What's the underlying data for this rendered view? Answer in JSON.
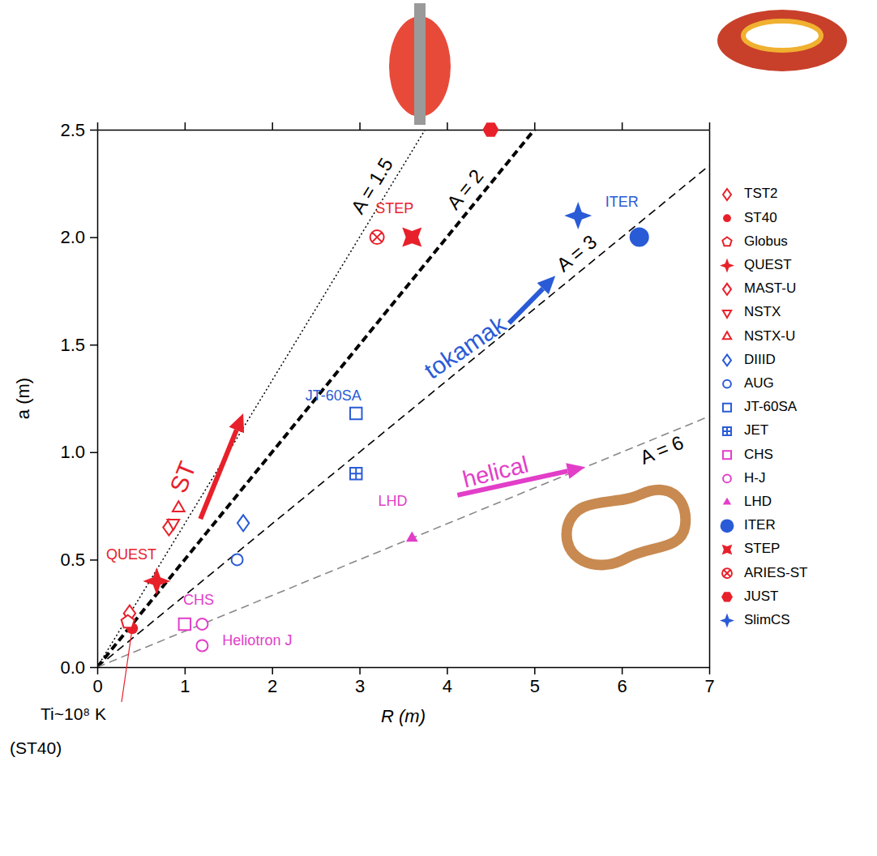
{
  "chart_data": {
    "type": "scatter",
    "xlabel": "R (m)",
    "ylabel": "a (m)",
    "xlim": [
      0,
      7
    ],
    "ylim": [
      0,
      2.5
    ],
    "xticks": [
      0,
      1,
      2,
      3,
      4,
      5,
      6,
      7
    ],
    "yticks": [
      {
        "value": 0,
        "label": "0.0"
      },
      {
        "value": 0.5,
        "label": "0.5"
      },
      {
        "value": 1,
        "label": "1.0"
      },
      {
        "value": 1.5,
        "label": "1.5"
      },
      {
        "value": 2,
        "label": "2.0"
      },
      {
        "value": 2.5,
        "label": "2.5"
      }
    ],
    "legend": "right",
    "series": [
      {
        "name": "TST2",
        "color": "#e8202a",
        "marker": "diamond-open",
        "x": [
          0.37
        ],
        "values": [
          0.25
        ]
      },
      {
        "name": "ST40",
        "color": "#e8202a",
        "marker": "circle",
        "x": [
          0.4
        ],
        "values": [
          0.18
        ]
      },
      {
        "name": "Globus",
        "color": "#e8202a",
        "marker": "pentagon-open",
        "x": [
          0.35
        ],
        "values": [
          0.21
        ]
      },
      {
        "name": "QUEST",
        "color": "#e8202a",
        "marker": "star4",
        "x": [
          0.68
        ],
        "values": [
          0.4
        ]
      },
      {
        "name": "MAST-U",
        "color": "#e8202a",
        "marker": "diamond-open",
        "x": [
          0.82
        ],
        "values": [
          0.65
        ]
      },
      {
        "name": "NSTX",
        "color": "#e8202a",
        "marker": "triangle-down-open",
        "x": [
          0.87
        ],
        "values": [
          0.67
        ]
      },
      {
        "name": "NSTX-U",
        "color": "#e8202a",
        "marker": "triangle-open",
        "x": [
          0.93
        ],
        "values": [
          0.74
        ]
      },
      {
        "name": "DIIID",
        "color": "#2a5bd7",
        "marker": "diamond-open",
        "x": [
          1.67
        ],
        "values": [
          0.67
        ]
      },
      {
        "name": "AUG",
        "color": "#2a5bd7",
        "marker": "circle-open",
        "x": [
          1.6
        ],
        "values": [
          0.5
        ]
      },
      {
        "name": "JT-60SA",
        "color": "#2a5bd7",
        "marker": "square-open",
        "x": [
          2.96
        ],
        "values": [
          1.18
        ]
      },
      {
        "name": "JET",
        "color": "#2a5bd7",
        "marker": "square-cross-open",
        "x": [
          2.96
        ],
        "values": [
          0.9
        ]
      },
      {
        "name": "CHS",
        "color": "#e23ec8",
        "marker": "square-open",
        "x": [
          1.0
        ],
        "values": [
          0.2
        ]
      },
      {
        "name": "H-J",
        "color": "#e23ec8",
        "marker": "circle-open",
        "x": [
          1.2,
          1.2
        ],
        "values": [
          0.2,
          0.1
        ]
      },
      {
        "name": "LHD",
        "color": "#e23ec8",
        "marker": "triangle",
        "x": [
          3.6
        ],
        "values": [
          0.6
        ]
      },
      {
        "name": "ITER",
        "color": "#2a5bd7",
        "marker": "large-circle",
        "x": [
          6.2
        ],
        "values": [
          2.0
        ]
      },
      {
        "name": "STEP",
        "color": "#e8202a",
        "marker": "star4-x",
        "x": [
          3.6
        ],
        "values": [
          2.0
        ]
      },
      {
        "name": "ARIES-ST",
        "color": "#e8202a",
        "marker": "circle-x-open",
        "x": [
          3.2
        ],
        "values": [
          2.0
        ]
      },
      {
        "name": "JUST",
        "color": "#e8202a",
        "marker": "hexagon",
        "x": [
          4.5
        ],
        "values": [
          2.5
        ]
      },
      {
        "name": "SlimCS",
        "color": "#2a5bd7",
        "marker": "star4",
        "x": [
          5.5
        ],
        "values": [
          2.1
        ]
      }
    ],
    "lines": [
      {
        "name": "A = 1.5",
        "A": 1.5,
        "color": "#000000",
        "line_style": "dotted"
      },
      {
        "name": "A = 2",
        "A": 2,
        "color": "#000000",
        "line_style": "thick-dashed"
      },
      {
        "name": "A = 3",
        "A": 3,
        "color": "#000000",
        "line_style": "dashed"
      },
      {
        "name": "A = 6",
        "A": 6,
        "color": "#888888",
        "line_style": "dashed"
      }
    ],
    "annotations": [
      {
        "text": "STEP",
        "x": 3.4,
        "y": 2.13,
        "color": "#e8202a"
      },
      {
        "text": "ITER",
        "x": 6.0,
        "y": 2.16,
        "color": "#2a5bd7"
      },
      {
        "text": "JT-60SA",
        "x": 2.7,
        "y": 1.26,
        "color": "#2a5bd7"
      },
      {
        "text": "LHD",
        "x": 3.38,
        "y": 0.77,
        "color": "#e23ec8"
      },
      {
        "text": "QUEST",
        "x": 0.39,
        "y": 0.52,
        "color": "#e8202a"
      },
      {
        "text": "CHS",
        "x": 1.16,
        "y": 0.31,
        "color": "#e23ec8"
      },
      {
        "text": "Heliotron J",
        "x": 1.83,
        "y": 0.12,
        "color": "#e23ec8"
      },
      {
        "text": "ST",
        "x": 1.0,
        "y": 0.88,
        "color": "#e8202a"
      },
      {
        "text": "tokamak",
        "x": 4.22,
        "y": 1.48,
        "color": "#2a5bd7"
      },
      {
        "text": "helical",
        "x": 4.56,
        "y": 0.9,
        "color": "#e23ec8"
      }
    ],
    "note": [
      "Ti~10⁸ K",
      "(ST40)"
    ]
  }
}
